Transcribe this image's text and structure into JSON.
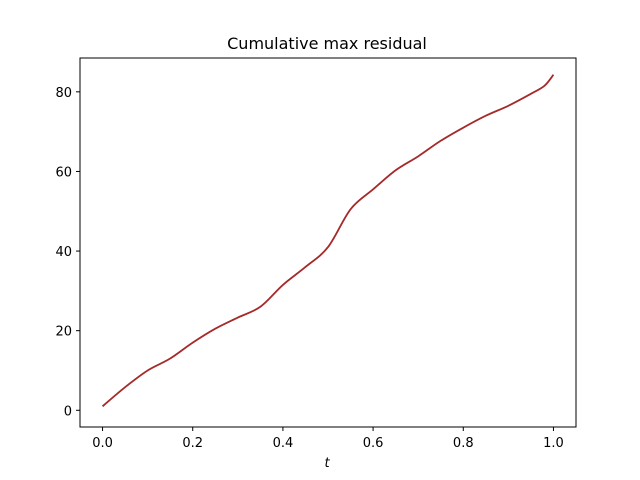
{
  "chart_data": {
    "type": "line",
    "title": "Cumulative max residual",
    "xlabel": "t",
    "ylabel": "",
    "xlim": [
      -0.05,
      1.05
    ],
    "ylim": [
      -4.2,
      88.5
    ],
    "xticks": [
      0.0,
      0.2,
      0.4,
      0.6,
      0.8,
      1.0
    ],
    "xtick_labels": [
      "0.0",
      "0.2",
      "0.4",
      "0.6",
      "0.8",
      "1.0"
    ],
    "yticks": [
      0,
      20,
      40,
      60,
      80
    ],
    "ytick_labels": [
      "0",
      "20",
      "40",
      "60",
      "80"
    ],
    "grid": false,
    "series": [
      {
        "color": "#a52a2a",
        "x": [
          0.0,
          0.05,
          0.1,
          0.15,
          0.2,
          0.25,
          0.3,
          0.35,
          0.4,
          0.45,
          0.5,
          0.55,
          0.6,
          0.65,
          0.7,
          0.75,
          0.8,
          0.85,
          0.9,
          0.95,
          0.98,
          1.0
        ],
        "y": [
          1.0,
          5.8,
          10.0,
          13.0,
          17.0,
          20.5,
          23.3,
          26.0,
          31.5,
          36.0,
          41.0,
          50.5,
          55.5,
          60.3,
          63.8,
          67.7,
          71.0,
          74.0,
          76.5,
          79.5,
          81.5,
          84.3
        ]
      }
    ]
  }
}
